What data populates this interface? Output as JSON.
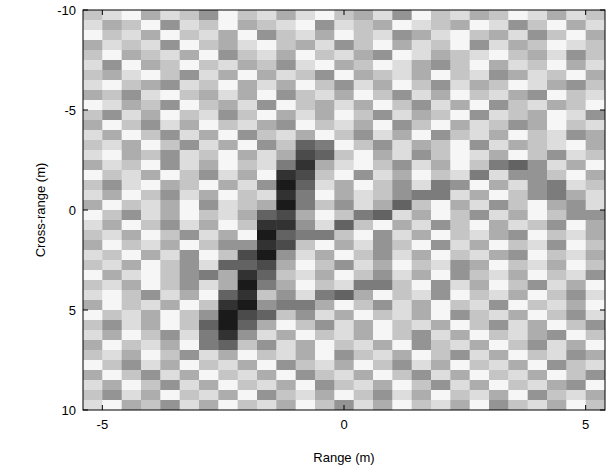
{
  "chart_data": {
    "type": "heatmap",
    "xlabel": "Range (m)",
    "ylabel": "Cross-range (m)",
    "xlim": [
      -5.4,
      5.4
    ],
    "ylim": [
      10,
      -10
    ],
    "xticks": [
      -5,
      0,
      5
    ],
    "yticks": [
      -10,
      -5,
      0,
      5,
      10
    ],
    "color": "#1a1a1a",
    "x": [
      -5.2,
      -4.8,
      -4.4,
      -4,
      -3.6,
      -3.2,
      -2.8,
      -2.4,
      -2,
      -1.6,
      -1.2,
      -0.8,
      -0.4,
      0,
      0.4,
      0.8,
      1.2,
      1.6,
      2,
      2.4,
      2.8,
      3.2,
      3.6,
      4,
      4.4,
      4.8,
      5.2
    ],
    "y": [
      -9.75,
      -9.25,
      -8.75,
      -8.25,
      -7.75,
      -7.25,
      -6.75,
      -6.25,
      -5.75,
      -5.25,
      -4.75,
      -4.25,
      -3.75,
      -3.25,
      -2.75,
      -2.25,
      -1.75,
      -1.25,
      -0.75,
      -0.25,
      0.25,
      0.75,
      1.25,
      1.75,
      2.25,
      2.75,
      3.25,
      3.75,
      4.25,
      4.75,
      5.25,
      5.75,
      6.25,
      6.75,
      7.25,
      7.75,
      8.25,
      8.75,
      9.25,
      9.75
    ],
    "values": [
      [
        2,
        1,
        0,
        3,
        1,
        2,
        4,
        0,
        2,
        1,
        3,
        1,
        0,
        2,
        3,
        1,
        4,
        0,
        2,
        1,
        3,
        2,
        0,
        1,
        3,
        1,
        2
      ],
      [
        1,
        3,
        2,
        0,
        4,
        1,
        2,
        0,
        3,
        2,
        1,
        0,
        4,
        1,
        2,
        3,
        0,
        1,
        2,
        3,
        0,
        1,
        4,
        2,
        0,
        3,
        1
      ],
      [
        0,
        2,
        1,
        3,
        0,
        2,
        1,
        3,
        0,
        4,
        2,
        1,
        3,
        0,
        2,
        1,
        4,
        3,
        1,
        0,
        2,
        3,
        1,
        4,
        2,
        0,
        3
      ],
      [
        3,
        1,
        2,
        1,
        4,
        0,
        2,
        3,
        1,
        0,
        2,
        3,
        1,
        4,
        2,
        0,
        3,
        1,
        2,
        0,
        4,
        1,
        3,
        2,
        0,
        1,
        2
      ],
      [
        2,
        0,
        3,
        2,
        1,
        3,
        0,
        4,
        2,
        1,
        3,
        0,
        2,
        1,
        3,
        4,
        0,
        1,
        3,
        2,
        1,
        0,
        2,
        3,
        1,
        4,
        2
      ],
      [
        1,
        4,
        0,
        3,
        2,
        0,
        2,
        1,
        3,
        2,
        4,
        1,
        0,
        3,
        2,
        0,
        1,
        3,
        4,
        2,
        0,
        3,
        1,
        2,
        0,
        3,
        1
      ],
      [
        2,
        3,
        1,
        0,
        2,
        4,
        1,
        3,
        0,
        3,
        1,
        2,
        4,
        0,
        3,
        2,
        1,
        3,
        0,
        2,
        1,
        4,
        3,
        1,
        2,
        0,
        3
      ],
      [
        1,
        0,
        2,
        3,
        4,
        1,
        2,
        0,
        3,
        1,
        3,
        0,
        2,
        4,
        1,
        3,
        0,
        2,
        4,
        1,
        3,
        2,
        0,
        1,
        3,
        4,
        2
      ],
      [
        3,
        2,
        4,
        1,
        0,
        2,
        3,
        1,
        3,
        0,
        4,
        2,
        1,
        3,
        0,
        2,
        4,
        1,
        3,
        0,
        2,
        1,
        3,
        4,
        0,
        2,
        1
      ],
      [
        0,
        1,
        3,
        2,
        4,
        0,
        2,
        3,
        1,
        4,
        0,
        2,
        3,
        1,
        3,
        0,
        2,
        4,
        1,
        3,
        0,
        4,
        2,
        1,
        3,
        2,
        0
      ],
      [
        2,
        4,
        1,
        3,
        0,
        2,
        1,
        4,
        2,
        0,
        3,
        1,
        3,
        0,
        2,
        4,
        1,
        3,
        2,
        0,
        4,
        1,
        2,
        3,
        0,
        1,
        4
      ],
      [
        3,
        0,
        2,
        4,
        1,
        3,
        0,
        2,
        1,
        3,
        4,
        0,
        2,
        1,
        3,
        0,
        4,
        2,
        0,
        3,
        1,
        2,
        4,
        3,
        0,
        2,
        1
      ],
      [
        1,
        3,
        0,
        2,
        4,
        1,
        3,
        0,
        4,
        2,
        1,
        3,
        0,
        2,
        4,
        1,
        3,
        0,
        4,
        2,
        1,
        3,
        0,
        2,
        1,
        4,
        3
      ],
      [
        2,
        1,
        3,
        0,
        2,
        4,
        1,
        3,
        0,
        4,
        2,
        6,
        5,
        0,
        2,
        4,
        1,
        3,
        2,
        0,
        4,
        1,
        3,
        2,
        1,
        0,
        3
      ],
      [
        1,
        0,
        3,
        2,
        4,
        1,
        2,
        0,
        3,
        1,
        3,
        7,
        6,
        2,
        0,
        3,
        1,
        4,
        2,
        0,
        1,
        3,
        0,
        2,
        4,
        1,
        2
      ],
      [
        3,
        1,
        2,
        0,
        4,
        1,
        3,
        0,
        2,
        1,
        5,
        8,
        3,
        1,
        0,
        2,
        4,
        1,
        3,
        0,
        2,
        5,
        6,
        4,
        1,
        3,
        0
      ],
      [
        0,
        2,
        1,
        3,
        0,
        2,
        4,
        1,
        3,
        0,
        8,
        7,
        2,
        0,
        4,
        1,
        3,
        0,
        2,
        1,
        5,
        1,
        4,
        4,
        2,
        0,
        3
      ],
      [
        2,
        4,
        1,
        0,
        3,
        2,
        0,
        3,
        1,
        4,
        9,
        6,
        1,
        3,
        0,
        2,
        4,
        1,
        5,
        4,
        0,
        3,
        1,
        4,
        5,
        1,
        2
      ],
      [
        1,
        3,
        0,
        2,
        4,
        1,
        3,
        0,
        2,
        1,
        8,
        5,
        0,
        3,
        1,
        2,
        4,
        5,
        5,
        1,
        3,
        0,
        2,
        4,
        5,
        3,
        1
      ],
      [
        3,
        0,
        2,
        1,
        3,
        0,
        4,
        1,
        2,
        3,
        9,
        5,
        2,
        4,
        1,
        3,
        6,
        2,
        0,
        3,
        1,
        4,
        2,
        0,
        3,
        4,
        1
      ],
      [
        0,
        2,
        4,
        1,
        3,
        0,
        2,
        1,
        3,
        6,
        7,
        3,
        0,
        2,
        5,
        6,
        1,
        3,
        0,
        2,
        4,
        1,
        3,
        0,
        2,
        4,
        4
      ],
      [
        1,
        3,
        0,
        2,
        4,
        1,
        3,
        0,
        2,
        8,
        8,
        4,
        1,
        6,
        2,
        0,
        3,
        1,
        4,
        2,
        0,
        3,
        1,
        2,
        4,
        0,
        3
      ],
      [
        2,
        1,
        3,
        0,
        2,
        4,
        1,
        3,
        0,
        9,
        6,
        5,
        5,
        2,
        0,
        4,
        1,
        3,
        0,
        2,
        1,
        3,
        4,
        0,
        2,
        1,
        3
      ],
      [
        3,
        0,
        2,
        1,
        3,
        0,
        2,
        4,
        4,
        8,
        7,
        2,
        0,
        3,
        1,
        4,
        2,
        0,
        4,
        1,
        3,
        0,
        2,
        1,
        4,
        0,
        2
      ],
      [
        1,
        2,
        0,
        3,
        1,
        4,
        0,
        2,
        7,
        9,
        4,
        1,
        3,
        0,
        2,
        4,
        1,
        3,
        0,
        2,
        1,
        3,
        4,
        0,
        2,
        1,
        3
      ],
      [
        2,
        1,
        3,
        0,
        2,
        4,
        1,
        6,
        6,
        7,
        3,
        0,
        2,
        4,
        1,
        3,
        0,
        2,
        1,
        4,
        3,
        0,
        2,
        1,
        3,
        0,
        2
      ],
      [
        0,
        3,
        1,
        0,
        2,
        4,
        5,
        3,
        8,
        6,
        2,
        1,
        3,
        0,
        2,
        4,
        1,
        3,
        0,
        4,
        2,
        1,
        3,
        0,
        2,
        1,
        4
      ],
      [
        2,
        1,
        3,
        0,
        2,
        4,
        1,
        3,
        9,
        5,
        3,
        0,
        2,
        1,
        5,
        5,
        2,
        0,
        4,
        1,
        3,
        0,
        2,
        4,
        1,
        3,
        0
      ],
      [
        1,
        0,
        2,
        4,
        1,
        3,
        0,
        6,
        8,
        2,
        4,
        1,
        5,
        6,
        3,
        0,
        2,
        1,
        4,
        0,
        2,
        1,
        3,
        0,
        2,
        4,
        1
      ],
      [
        3,
        0,
        2,
        1,
        3,
        0,
        2,
        8,
        9,
        4,
        5,
        5,
        3,
        0,
        2,
        4,
        1,
        3,
        0,
        2,
        1,
        4,
        0,
        2,
        1,
        3,
        0
      ],
      [
        0,
        2,
        1,
        3,
        0,
        2,
        4,
        9,
        7,
        6,
        2,
        4,
        1,
        3,
        0,
        2,
        1,
        3,
        0,
        4,
        2,
        1,
        3,
        0,
        2,
        4,
        1
      ],
      [
        2,
        4,
        1,
        3,
        0,
        2,
        6,
        9,
        6,
        3,
        0,
        2,
        4,
        1,
        3,
        0,
        2,
        1,
        3,
        0,
        2,
        4,
        1,
        3,
        0,
        2,
        4
      ],
      [
        1,
        3,
        0,
        2,
        4,
        1,
        5,
        8,
        4,
        1,
        3,
        0,
        2,
        1,
        3,
        0,
        2,
        4,
        1,
        3,
        0,
        2,
        1,
        3,
        4,
        0,
        2
      ],
      [
        3,
        0,
        2,
        1,
        3,
        0,
        5,
        6,
        2,
        4,
        1,
        3,
        0,
        2,
        1,
        3,
        0,
        4,
        2,
        1,
        3,
        0,
        2,
        4,
        1,
        3,
        0
      ],
      [
        2,
        1,
        3,
        0,
        2,
        4,
        1,
        3,
        0,
        2,
        1,
        3,
        0,
        4,
        2,
        1,
        3,
        0,
        2,
        4,
        1,
        3,
        0,
        2,
        1,
        4,
        3
      ],
      [
        0,
        2,
        4,
        1,
        3,
        0,
        2,
        1,
        3,
        0,
        4,
        2,
        1,
        3,
        0,
        2,
        4,
        1,
        3,
        0,
        2,
        1,
        3,
        0,
        4,
        2,
        1
      ],
      [
        3,
        0,
        2,
        4,
        1,
        3,
        0,
        2,
        1,
        3,
        0,
        4,
        2,
        1,
        3,
        0,
        2,
        4,
        1,
        3,
        0,
        2,
        1,
        3,
        0,
        2,
        4
      ],
      [
        1,
        3,
        0,
        2,
        4,
        1,
        3,
        0,
        2,
        1,
        3,
        0,
        4,
        2,
        1,
        3,
        0,
        2,
        4,
        1,
        3,
        0,
        2,
        1,
        3,
        4,
        0
      ],
      [
        2,
        4,
        1,
        3,
        0,
        2,
        1,
        3,
        0,
        4,
        2,
        1,
        3,
        0,
        2,
        4,
        1,
        3,
        0,
        2,
        1,
        3,
        0,
        4,
        2,
        1,
        3
      ],
      [
        1,
        0,
        3,
        2,
        4,
        1,
        3,
        0,
        2,
        1,
        3,
        0,
        2,
        4,
        1,
        3,
        0,
        2,
        1,
        3,
        0,
        4,
        2,
        1,
        3,
        0,
        2
      ]
    ]
  }
}
